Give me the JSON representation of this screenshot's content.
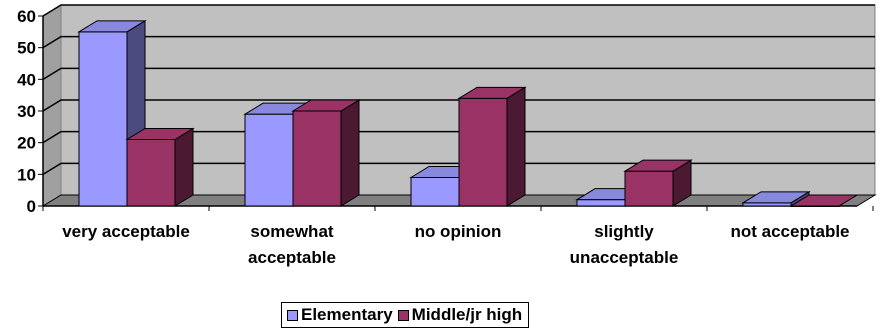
{
  "chart_data": {
    "type": "bar",
    "title": "",
    "xlabel": "",
    "ylabel": "",
    "categories": [
      [
        "very acceptable"
      ],
      [
        "somewhat",
        "acceptable"
      ],
      [
        "no opinion"
      ],
      [
        "slightly",
        "unacceptable"
      ],
      [
        "not acceptable"
      ]
    ],
    "series": [
      {
        "name": "Elementary",
        "values": [
          55,
          29,
          9,
          2,
          1
        ],
        "color": "#9999ff",
        "side_color": "#4b4b80",
        "top_color": "#8888dd"
      },
      {
        "name": "Middle/jr high",
        "values": [
          21,
          30,
          34,
          11,
          0
        ],
        "color": "#993366",
        "side_color": "#4c1933",
        "top_color": "#993366"
      }
    ],
    "ylim": [
      0,
      60
    ],
    "yticks": [
      "0",
      "10",
      "20",
      "30",
      "40",
      "50",
      "60"
    ],
    "grid": true,
    "legend_position": "bottom",
    "plot_background": "#c0c0c0",
    "floor_color": "#808080"
  }
}
